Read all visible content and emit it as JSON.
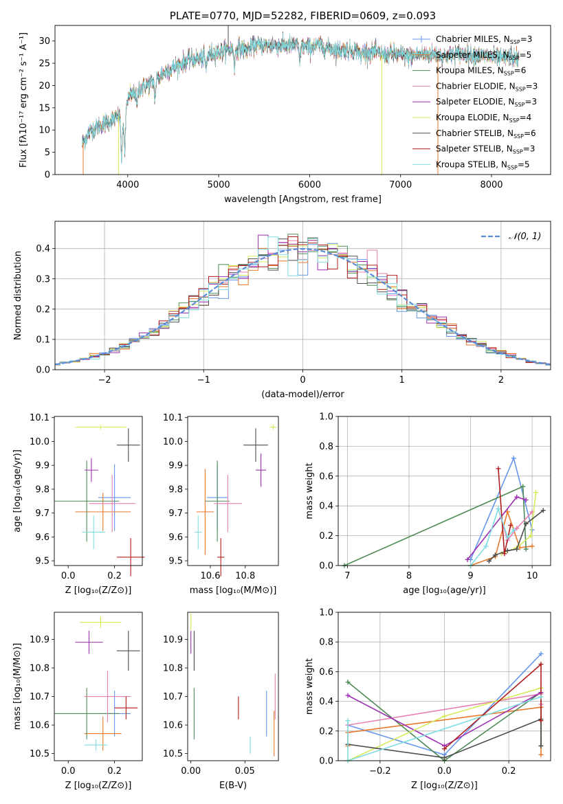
{
  "colors": [
    "#6495ED",
    "#e8792b",
    "#4e8a56",
    "#e87fb0",
    "#9e2fb3",
    "#d6ea5a",
    "#4d4d4d",
    "#b01d1d",
    "#7fdde0"
  ],
  "chart_data": [
    {
      "id": "spectrum",
      "type": "line",
      "title": "PLATE=0770, MJD=52282, FIBERID=0609, z=0.093",
      "xlabel": "wavelength [Angstrom, rest frame]",
      "ylabel": "Flux [fλ10⁻¹⁷ erg cm⁻² s⁻¹ A⁻¹]",
      "xlim": [
        3200,
        8650
      ],
      "ylim": [
        0,
        33.5
      ],
      "xticks": [
        4000,
        5000,
        6000,
        7000,
        8000
      ],
      "yticks": [
        0,
        5,
        10,
        15,
        20,
        25,
        30
      ],
      "legend_position": "upper right",
      "legend": [
        {
          "label": "Chabrier MILES, N",
          "sub": "SSP",
          "tail": "=3",
          "marker": "|"
        },
        {
          "label": "Salpeter MILES, N",
          "sub": "SSP",
          "tail": "=5",
          "marker": ""
        },
        {
          "label": "Kroupa MILES, N",
          "sub": "SSP",
          "tail": "=6",
          "marker": ""
        },
        {
          "label": "Chabrier ELODIE, N",
          "sub": "SSP",
          "tail": "=3",
          "marker": ""
        },
        {
          "label": "Salpeter ELODIE, N",
          "sub": "SSP",
          "tail": "=3",
          "marker": ""
        },
        {
          "label": "Kroupa ELODIE, N",
          "sub": "SSP",
          "tail": "=4",
          "marker": ""
        },
        {
          "label": "Chabrier STELIB, N",
          "sub": "SSP",
          "tail": "=6",
          "marker": ""
        },
        {
          "label": "Salpeter STELIB, N",
          "sub": "SSP",
          "tail": "=3",
          "marker": ""
        },
        {
          "label": "Kroupa STELIB, N",
          "sub": "SSP",
          "tail": "=5",
          "marker": ""
        }
      ],
      "continuum": [
        [
          3500,
          7
        ],
        [
          3600,
          10
        ],
        [
          3700,
          11
        ],
        [
          3800,
          12
        ],
        [
          3900,
          13
        ],
        [
          3950,
          12
        ],
        [
          4000,
          17
        ],
        [
          4100,
          19
        ],
        [
          4200,
          20
        ],
        [
          4300,
          21
        ],
        [
          4400,
          23
        ],
        [
          4500,
          24
        ],
        [
          4600,
          25
        ],
        [
          4700,
          26
        ],
        [
          4800,
          26
        ],
        [
          4900,
          27
        ],
        [
          5000,
          27.5
        ],
        [
          5100,
          28
        ],
        [
          5200,
          28.5
        ],
        [
          5300,
          28
        ],
        [
          5400,
          29
        ],
        [
          5500,
          29
        ],
        [
          5600,
          29
        ],
        [
          5700,
          29
        ],
        [
          5800,
          29
        ],
        [
          5900,
          29
        ],
        [
          6000,
          28.5
        ],
        [
          6100,
          29
        ],
        [
          6200,
          28.5
        ],
        [
          6300,
          28
        ],
        [
          6400,
          28
        ],
        [
          6500,
          28
        ],
        [
          6600,
          27.5
        ],
        [
          6700,
          27.5
        ],
        [
          6800,
          27
        ],
        [
          6900,
          27
        ],
        [
          7000,
          27
        ],
        [
          7100,
          26.5
        ],
        [
          7200,
          27
        ],
        [
          7300,
          27
        ],
        [
          7400,
          27
        ],
        [
          7500,
          26.5
        ],
        [
          7600,
          27
        ],
        [
          7700,
          27
        ],
        [
          7800,
          27
        ],
        [
          7900,
          26.5
        ],
        [
          8000,
          26.5
        ],
        [
          8100,
          26
        ],
        [
          8200,
          26.5
        ],
        [
          8300,
          26
        ]
      ],
      "absorption_lines": [
        [
          3933,
          9
        ],
        [
          3968,
          9
        ],
        [
          4101,
          4
        ],
        [
          4300,
          4
        ],
        [
          4861,
          3
        ],
        [
          5175,
          4
        ],
        [
          5890,
          4
        ],
        [
          6563,
          2
        ]
      ],
      "spikes": [
        [
          3510,
          0
        ],
        [
          3900,
          0
        ],
        [
          5105,
          33.5
        ],
        [
          6795,
          0
        ],
        [
          7410,
          0
        ]
      ]
    },
    {
      "id": "residuals",
      "type": "histogram",
      "xlabel": "(data-model)/error",
      "ylabel": "Normed distribution",
      "xlim": [
        -2.5,
        2.5
      ],
      "ylim": [
        0,
        0.49
      ],
      "xticks": [
        -2,
        -1,
        0,
        1,
        2
      ],
      "yticks": [
        0.0,
        0.1,
        0.2,
        0.3,
        0.4
      ],
      "bin_width": 0.1,
      "reference": {
        "label": "𝒩(0, 1)",
        "mean": 0,
        "sigma": 1
      },
      "legend_position": "upper right"
    },
    {
      "id": "age-vs-Z",
      "type": "scatter",
      "xlabel": "Z [log₁₀(Z/Z⊙)]",
      "ylabel": "age  [log₁₀(age/yr)]",
      "xlim": [
        -0.06,
        0.32
      ],
      "ylim": [
        9.48,
        10.105
      ],
      "xticks": [
        0.0,
        0.2
      ],
      "yticks": [
        9.5,
        9.6,
        9.7,
        9.8,
        9.9,
        10.0,
        10.1
      ],
      "points": [
        {
          "x": 0.2,
          "xe": 0.07,
          "y": 9.765,
          "ye": 0.14
        },
        {
          "x": 0.15,
          "xe": 0.12,
          "y": 9.705,
          "ye": 0.08
        },
        {
          "x": 0.08,
          "xe": 0.14,
          "y": 9.75,
          "ye": 0.17
        },
        {
          "x": 0.19,
          "xe": 0.1,
          "y": 9.74,
          "ye": 0.12
        },
        {
          "x": 0.1,
          "xe": 0.03,
          "y": 9.88,
          "ye": 0.05
        },
        {
          "x": 0.14,
          "xe": 0.11,
          "y": 10.06,
          "ye": 0.01
        },
        {
          "x": 0.26,
          "xe": 0.05,
          "y": 9.985,
          "ye": 0.07
        },
        {
          "x": 0.27,
          "xe": 0.06,
          "y": 9.515,
          "ye": 0.08
        },
        {
          "x": 0.11,
          "xe": 0.05,
          "y": 9.62,
          "ye": 0.07
        }
      ]
    },
    {
      "id": "age-vs-mass",
      "type": "scatter",
      "xlabel": "mass [log₁₀(M/M⊙)]",
      "ylabel": "",
      "xlim": [
        10.47,
        10.99
      ],
      "ylim": [
        9.48,
        10.105
      ],
      "xticks": [
        10.6,
        10.8
      ],
      "yticks": [
        9.5,
        9.6,
        9.7,
        9.8,
        9.9,
        10.0,
        10.1
      ],
      "points": [
        {
          "x": 10.64,
          "xe": 0.06,
          "y": 9.765,
          "ye": 0.14
        },
        {
          "x": 10.57,
          "xe": 0.05,
          "y": 9.705,
          "ye": 0.18
        },
        {
          "x": 10.64,
          "xe": 0.07,
          "y": 9.75,
          "ye": 0.17
        },
        {
          "x": 10.7,
          "xe": 0.08,
          "y": 9.74,
          "ye": 0.12
        },
        {
          "x": 10.89,
          "xe": 0.03,
          "y": 9.88,
          "ye": 0.07
        },
        {
          "x": 10.96,
          "xe": 0.02,
          "y": 10.06,
          "ye": 0.01
        },
        {
          "x": 10.86,
          "xe": 0.07,
          "y": 9.985,
          "ye": 0.07
        },
        {
          "x": 10.66,
          "xe": 0.02,
          "y": 9.515,
          "ye": 0.08
        },
        {
          "x": 10.53,
          "xe": 0.02,
          "y": 9.62,
          "ye": 0.07
        }
      ]
    },
    {
      "id": "mw-vs-age",
      "type": "line",
      "xlabel": "age  [log₁₀(age/yr)]",
      "ylabel": "mass weight",
      "xlim": [
        6.85,
        10.3
      ],
      "ylim": [
        0,
        1.0
      ],
      "xticks": [
        7,
        8,
        9,
        10
      ],
      "yticks": [
        0.0,
        0.2,
        0.4,
        0.6,
        0.8,
        1.0
      ],
      "series": [
        {
          "x": [
            9.0,
            9.7,
            10.0
          ],
          "y": [
            0.04,
            0.72,
            0.24
          ]
        },
        {
          "x": [
            9.0,
            9.4,
            9.6,
            9.8,
            10.0
          ],
          "y": [
            0.0,
            0.06,
            0.36,
            0.12,
            0.13
          ]
        },
        {
          "x": [
            6.95,
            9.85,
            9.9
          ],
          "y": [
            0.0,
            0.53,
            0.11
          ]
        },
        {
          "x": [
            9.45,
            9.6,
            9.75,
            10.0
          ],
          "y": [
            0.38,
            0.17,
            0.25,
            0.36
          ]
        },
        {
          "x": [
            8.95,
            9.75,
            9.9
          ],
          "y": [
            0.04,
            0.46,
            0.44
          ]
        },
        {
          "x": [
            9.5,
            9.75,
            9.98,
            10.06
          ],
          "y": [
            0.08,
            0.12,
            0.2,
            0.49
          ]
        },
        {
          "x": [
            9.3,
            9.4,
            9.6,
            9.75,
            9.9,
            10.18
          ],
          "y": [
            0.03,
            0.07,
            0.1,
            0.11,
            0.28,
            0.37
          ]
        },
        {
          "x": [
            9.45,
            9.55,
            9.65
          ],
          "y": [
            0.65,
            0.08,
            0.27
          ]
        },
        {
          "x": [
            9.0,
            9.25,
            9.45,
            9.6,
            9.7
          ],
          "y": [
            0.0,
            0.13,
            0.38,
            0.19,
            0.24
          ]
        }
      ]
    },
    {
      "id": "mass-vs-Z",
      "type": "scatter",
      "xlabel": "Z [log₁₀(Z/Z⊙)]",
      "ylabel": "mass [log₁₀(M/M⊙)]",
      "xlim": [
        -0.06,
        0.32
      ],
      "ylim": [
        10.475,
        10.995
      ],
      "xticks": [
        0.0,
        0.2
      ],
      "yticks": [
        10.5,
        10.6,
        10.7,
        10.8,
        10.9
      ],
      "points": [
        {
          "x": 0.2,
          "xe": 0.07,
          "y": 10.64,
          "ye": 0.08
        },
        {
          "x": 0.15,
          "xe": 0.08,
          "y": 10.57,
          "ye": 0.06
        },
        {
          "x": 0.08,
          "xe": 0.14,
          "y": 10.64,
          "ye": 0.09
        },
        {
          "x": 0.17,
          "xe": 0.1,
          "y": 10.7,
          "ye": 0.09
        },
        {
          "x": 0.09,
          "xe": 0.06,
          "y": 10.89,
          "ye": 0.04
        },
        {
          "x": 0.14,
          "xe": 0.09,
          "y": 10.96,
          "ye": 0.02
        },
        {
          "x": 0.26,
          "xe": 0.05,
          "y": 10.86,
          "ye": 0.07
        },
        {
          "x": 0.25,
          "xe": 0.05,
          "y": 10.66,
          "ye": 0.04
        },
        {
          "x": 0.12,
          "xe": 0.05,
          "y": 10.53,
          "ye": 0.02
        }
      ]
    },
    {
      "id": "mass-vs-ebv",
      "type": "scatter",
      "xlabel": "E(B-V)",
      "ylabel": "",
      "xlim": [
        -0.003,
        0.081
      ],
      "ylim": [
        10.475,
        10.995
      ],
      "xticks": [
        0.0,
        0.05
      ],
      "yticks": [
        10.5,
        10.6,
        10.7,
        10.8,
        10.9
      ],
      "points": [
        {
          "x": 0.07,
          "xe": 0.0,
          "y": 10.64,
          "ye": 0.08
        },
        {
          "x": 0.077,
          "xe": 0.0,
          "y": 10.57,
          "ye": 0.08
        },
        {
          "x": 0.003,
          "xe": 0.0,
          "y": 10.64,
          "ye": 0.09
        },
        {
          "x": 0.078,
          "xe": 0.0,
          "y": 10.7,
          "ye": 0.08
        },
        {
          "x": 0.0,
          "xe": 0.0,
          "y": 10.89,
          "ye": 0.04
        },
        {
          "x": 0.0,
          "xe": 0.0,
          "y": 10.96,
          "ye": 0.03
        },
        {
          "x": 0.003,
          "xe": 0.0,
          "y": 10.86,
          "ye": 0.07
        },
        {
          "x": 0.044,
          "xe": 0.0,
          "y": 10.66,
          "ye": 0.04
        },
        {
          "x": 0.055,
          "xe": 0.0,
          "y": 10.53,
          "ye": 0.03
        }
      ]
    },
    {
      "id": "mw-vs-Z",
      "type": "line",
      "xlabel": "Z [log₁₀(Z/Z⊙)]",
      "ylabel": "mass weight",
      "xlim": [
        -0.33,
        0.33
      ],
      "ylim": [
        0,
        1.0
      ],
      "xticks": [
        -0.2,
        0.0,
        0.2
      ],
      "yticks": [
        0.0,
        0.2,
        0.4,
        0.6,
        0.8,
        1.0
      ],
      "series": [
        {
          "x": [
            -0.3,
            0.0,
            0.3
          ],
          "y": [
            0.24,
            0.04,
            0.72
          ]
        },
        {
          "x": [
            -0.3,
            -0.3,
            0.3,
            0.3
          ],
          "y": [
            0.1,
            0.19,
            0.36,
            0.04
          ]
        },
        {
          "x": [
            -0.3,
            0.0,
            0.3,
            0.3
          ],
          "y": [
            0.53,
            0.0,
            0.46,
            0.1
          ]
        },
        {
          "x": [
            -0.3,
            0.3,
            0.3
          ],
          "y": [
            0.24,
            0.45,
            0.38
          ]
        },
        {
          "x": [
            -0.3,
            0.0,
            0.3
          ],
          "y": [
            0.44,
            0.1,
            0.46
          ]
        },
        {
          "x": [
            -0.3,
            0.0,
            0.3
          ],
          "y": [
            0.0,
            0.3,
            0.49
          ]
        },
        {
          "x": [
            -0.3,
            0.0,
            0.3,
            0.3
          ],
          "y": [
            0.11,
            0.02,
            0.28,
            0.1
          ]
        },
        {
          "x": [
            0.0,
            0.3,
            0.3
          ],
          "y": [
            0.08,
            0.65,
            0.27
          ]
        },
        {
          "x": [
            -0.3,
            -0.3,
            0.3
          ],
          "y": [
            0.27,
            0.0,
            0.43
          ]
        }
      ]
    }
  ]
}
